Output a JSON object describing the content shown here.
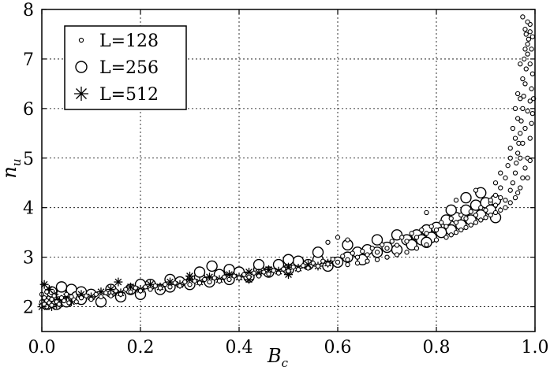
{
  "chart_data": {
    "type": "scatter",
    "xlabel": "B",
    "xlabel_sub": "c",
    "ylabel": "n",
    "ylabel_sub": "u",
    "xlim": [
      0.0,
      1.0
    ],
    "ylim": [
      1.5,
      8.0
    ],
    "xticks": [
      "0.0",
      "0.2",
      "0.4",
      "0.6",
      "0.8",
      "1.0"
    ],
    "yticks": [
      "2",
      "3",
      "4",
      "5",
      "6",
      "7",
      "8"
    ],
    "grid": true,
    "legend_position": "top-left",
    "series": [
      {
        "name": "L=128",
        "marker": "small-circle",
        "points": [
          [
            0.0,
            2.02
          ],
          [
            0.0,
            2.1
          ],
          [
            0.0,
            2.25
          ],
          [
            0.005,
            2.05
          ],
          [
            0.005,
            2.18
          ],
          [
            0.01,
            2.0
          ],
          [
            0.01,
            2.12
          ],
          [
            0.01,
            2.3
          ],
          [
            0.015,
            2.08
          ],
          [
            0.02,
            2.15
          ],
          [
            0.02,
            2.03
          ],
          [
            0.025,
            2.22
          ],
          [
            0.03,
            2.1
          ],
          [
            0.035,
            2.05
          ],
          [
            0.04,
            2.18
          ],
          [
            0.045,
            2.12
          ],
          [
            0.05,
            2.25
          ],
          [
            0.055,
            2.08
          ],
          [
            0.06,
            2.2
          ],
          [
            0.065,
            2.14
          ],
          [
            0.07,
            2.1
          ],
          [
            0.08,
            2.18
          ],
          [
            0.09,
            2.22
          ],
          [
            0.1,
            2.15
          ],
          [
            0.11,
            2.25
          ],
          [
            0.12,
            2.2
          ],
          [
            0.13,
            2.28
          ],
          [
            0.14,
            2.22
          ],
          [
            0.15,
            2.32
          ],
          [
            0.16,
            2.25
          ],
          [
            0.17,
            2.35
          ],
          [
            0.18,
            2.3
          ],
          [
            0.19,
            2.38
          ],
          [
            0.2,
            2.32
          ],
          [
            0.21,
            2.4
          ],
          [
            0.22,
            2.35
          ],
          [
            0.23,
            2.42
          ],
          [
            0.24,
            2.38
          ],
          [
            0.25,
            2.45
          ],
          [
            0.26,
            2.4
          ],
          [
            0.27,
            2.48
          ],
          [
            0.28,
            2.42
          ],
          [
            0.29,
            2.5
          ],
          [
            0.3,
            2.45
          ],
          [
            0.31,
            2.52
          ],
          [
            0.32,
            2.48
          ],
          [
            0.33,
            2.55
          ],
          [
            0.34,
            2.5
          ],
          [
            0.35,
            2.58
          ],
          [
            0.36,
            2.52
          ],
          [
            0.37,
            2.6
          ],
          [
            0.38,
            2.55
          ],
          [
            0.39,
            2.62
          ],
          [
            0.4,
            2.58
          ],
          [
            0.41,
            2.65
          ],
          [
            0.42,
            2.6
          ],
          [
            0.43,
            2.68
          ],
          [
            0.44,
            2.62
          ],
          [
            0.45,
            2.7
          ],
          [
            0.46,
            2.66
          ],
          [
            0.47,
            2.73
          ],
          [
            0.48,
            2.68
          ],
          [
            0.49,
            2.76
          ],
          [
            0.5,
            2.72
          ],
          [
            0.51,
            2.8
          ],
          [
            0.52,
            2.75
          ],
          [
            0.53,
            2.83
          ],
          [
            0.54,
            2.78
          ],
          [
            0.55,
            2.88
          ],
          [
            0.56,
            2.82
          ],
          [
            0.57,
            2.92
          ],
          [
            0.58,
            2.86
          ],
          [
            0.59,
            2.96
          ],
          [
            0.6,
            2.9
          ],
          [
            0.61,
            3.02
          ],
          [
            0.62,
            2.95
          ],
          [
            0.63,
            3.08
          ],
          [
            0.64,
            3.0
          ],
          [
            0.65,
            3.12
          ],
          [
            0.66,
            3.05
          ],
          [
            0.67,
            3.18
          ],
          [
            0.68,
            3.1
          ],
          [
            0.69,
            3.25
          ],
          [
            0.7,
            3.18
          ],
          [
            0.71,
            3.32
          ],
          [
            0.72,
            3.24
          ],
          [
            0.73,
            3.4
          ],
          [
            0.74,
            3.32
          ],
          [
            0.75,
            3.48
          ],
          [
            0.76,
            3.4
          ],
          [
            0.77,
            3.55
          ],
          [
            0.78,
            3.48
          ],
          [
            0.79,
            3.62
          ],
          [
            0.8,
            3.55
          ],
          [
            0.81,
            3.7
          ],
          [
            0.82,
            3.62
          ],
          [
            0.83,
            3.78
          ],
          [
            0.84,
            3.7
          ],
          [
            0.85,
            3.85
          ],
          [
            0.86,
            3.78
          ],
          [
            0.87,
            3.92
          ],
          [
            0.88,
            3.85
          ],
          [
            0.89,
            4.0
          ],
          [
            0.9,
            3.95
          ],
          [
            0.91,
            4.1
          ],
          [
            0.92,
            4.05
          ],
          [
            0.93,
            4.2
          ],
          [
            0.94,
            4.15
          ],
          [
            0.95,
            4.35
          ],
          [
            0.955,
            4.5
          ],
          [
            0.96,
            4.7
          ],
          [
            0.962,
            4.9
          ],
          [
            0.965,
            5.1
          ],
          [
            0.967,
            5.3
          ],
          [
            0.97,
            5.5
          ],
          [
            0.972,
            5.75
          ],
          [
            0.975,
            6.0
          ],
          [
            0.977,
            6.25
          ],
          [
            0.98,
            6.5
          ],
          [
            0.982,
            6.8
          ],
          [
            0.985,
            7.1
          ],
          [
            0.987,
            7.4
          ],
          [
            0.99,
            7.7
          ],
          [
            0.975,
            7.85
          ],
          [
            0.98,
            7.6
          ],
          [
            0.985,
            7.3
          ],
          [
            0.99,
            6.9
          ],
          [
            0.993,
            6.4
          ],
          [
            0.995,
            5.9
          ],
          [
            0.99,
            5.4
          ],
          [
            0.985,
            5.0
          ],
          [
            0.98,
            4.8
          ],
          [
            0.975,
            4.6
          ],
          [
            0.97,
            4.4
          ],
          [
            0.965,
            4.3
          ],
          [
            0.96,
            4.2
          ],
          [
            0.95,
            4.1
          ],
          [
            0.94,
            4.0
          ],
          [
            0.93,
            3.95
          ],
          [
            0.92,
            3.9
          ],
          [
            0.91,
            3.85
          ],
          [
            0.9,
            3.8
          ],
          [
            0.89,
            3.75
          ],
          [
            0.88,
            3.7
          ],
          [
            0.87,
            3.65
          ],
          [
            0.86,
            3.6
          ],
          [
            0.85,
            3.55
          ],
          [
            0.84,
            3.5
          ],
          [
            0.83,
            3.45
          ],
          [
            0.82,
            3.4
          ],
          [
            0.8,
            3.35
          ],
          [
            0.78,
            3.25
          ],
          [
            0.76,
            3.18
          ],
          [
            0.74,
            3.1
          ],
          [
            0.72,
            3.05
          ],
          [
            0.7,
            3.0
          ],
          [
            0.68,
            2.95
          ],
          [
            0.66,
            2.92
          ],
          [
            0.64,
            2.88
          ],
          [
            0.62,
            2.85
          ],
          [
            0.6,
            3.4
          ],
          [
            0.58,
            3.3
          ],
          [
            0.62,
            3.35
          ],
          [
            0.78,
            3.9
          ],
          [
            0.84,
            4.15
          ],
          [
            0.88,
            4.35
          ],
          [
            0.92,
            4.5
          ],
          [
            0.93,
            4.7
          ],
          [
            0.945,
            4.85
          ],
          [
            0.95,
            5.0
          ],
          [
            0.96,
            5.4
          ],
          [
            0.965,
            5.8
          ],
          [
            0.97,
            6.2
          ],
          [
            0.975,
            6.6
          ],
          [
            0.978,
            7.0
          ],
          [
            0.98,
            7.2
          ],
          [
            0.982,
            7.5
          ],
          [
            0.985,
            7.75
          ],
          [
            0.97,
            6.9
          ],
          [
            0.965,
            6.3
          ],
          [
            0.96,
            6.0
          ],
          [
            0.955,
            5.6
          ],
          [
            0.95,
            5.2
          ],
          [
            0.94,
            4.6
          ],
          [
            0.93,
            4.4
          ],
          [
            0.92,
            4.25
          ],
          [
            0.91,
            4.15
          ],
          [
            0.99,
            7.55
          ],
          [
            0.993,
            7.2
          ],
          [
            0.995,
            6.7
          ],
          [
            0.997,
            6.2
          ],
          [
            0.995,
            7.45
          ],
          [
            0.97,
            5.0
          ],
          [
            0.975,
            5.3
          ],
          [
            0.98,
            5.6
          ],
          [
            0.985,
            5.95
          ],
          [
            0.99,
            6.15
          ],
          [
            0.993,
            5.7
          ],
          [
            0.99,
            4.95
          ],
          [
            0.985,
            4.6
          ]
        ]
      },
      {
        "name": "L=256",
        "marker": "large-circle",
        "points": [
          [
            0.01,
            2.05
          ],
          [
            0.02,
            2.15
          ],
          [
            0.03,
            2.05
          ],
          [
            0.04,
            2.25
          ],
          [
            0.05,
            2.1
          ],
          [
            0.06,
            2.35
          ],
          [
            0.07,
            2.2
          ],
          [
            0.08,
            2.15
          ],
          [
            0.1,
            2.25
          ],
          [
            0.12,
            2.1
          ],
          [
            0.14,
            2.3
          ],
          [
            0.16,
            2.2
          ],
          [
            0.18,
            2.35
          ],
          [
            0.2,
            2.25
          ],
          [
            0.22,
            2.45
          ],
          [
            0.24,
            2.35
          ],
          [
            0.26,
            2.4
          ],
          [
            0.28,
            2.5
          ],
          [
            0.3,
            2.45
          ],
          [
            0.32,
            2.6
          ],
          [
            0.34,
            2.5
          ],
          [
            0.345,
            2.82
          ],
          [
            0.36,
            2.65
          ],
          [
            0.38,
            2.55
          ],
          [
            0.4,
            2.7
          ],
          [
            0.42,
            2.6
          ],
          [
            0.44,
            2.75
          ],
          [
            0.46,
            2.7
          ],
          [
            0.48,
            2.85
          ],
          [
            0.5,
            2.75
          ],
          [
            0.52,
            2.92
          ],
          [
            0.54,
            2.85
          ],
          [
            0.56,
            2.95
          ],
          [
            0.58,
            2.82
          ],
          [
            0.6,
            2.9
          ],
          [
            0.62,
            3.0
          ],
          [
            0.64,
            3.1
          ],
          [
            0.65,
            2.95
          ],
          [
            0.66,
            3.15
          ],
          [
            0.68,
            3.1
          ],
          [
            0.7,
            3.2
          ],
          [
            0.72,
            3.15
          ],
          [
            0.74,
            3.35
          ],
          [
            0.75,
            3.25
          ],
          [
            0.76,
            3.45
          ],
          [
            0.77,
            3.35
          ],
          [
            0.78,
            3.55
          ],
          [
            0.79,
            3.4
          ],
          [
            0.8,
            3.6
          ],
          [
            0.81,
            3.5
          ],
          [
            0.82,
            3.75
          ],
          [
            0.83,
            3.55
          ],
          [
            0.84,
            3.8
          ],
          [
            0.85,
            3.65
          ],
          [
            0.86,
            3.95
          ],
          [
            0.87,
            3.75
          ],
          [
            0.88,
            4.05
          ],
          [
            0.89,
            3.85
          ],
          [
            0.9,
            4.1
          ],
          [
            0.91,
            3.95
          ],
          [
            0.92,
            4.15
          ],
          [
            0.92,
            3.8
          ],
          [
            0.89,
            4.3
          ],
          [
            0.86,
            4.2
          ],
          [
            0.83,
            3.95
          ],
          [
            0.78,
            3.3
          ],
          [
            0.72,
            3.45
          ],
          [
            0.68,
            3.35
          ],
          [
            0.62,
            3.25
          ],
          [
            0.56,
            3.1
          ],
          [
            0.5,
            2.95
          ],
          [
            0.44,
            2.85
          ],
          [
            0.38,
            2.75
          ],
          [
            0.32,
            2.7
          ],
          [
            0.26,
            2.55
          ],
          [
            0.2,
            2.45
          ],
          [
            0.14,
            2.35
          ],
          [
            0.08,
            2.3
          ],
          [
            0.04,
            2.4
          ],
          [
            0.02,
            2.3
          ]
        ]
      },
      {
        "name": "L=512",
        "marker": "asterisk",
        "points": [
          [
            0.0,
            2.0
          ],
          [
            0.005,
            2.45
          ],
          [
            0.01,
            2.1
          ],
          [
            0.015,
            2.35
          ],
          [
            0.02,
            2.0
          ],
          [
            0.025,
            2.25
          ],
          [
            0.03,
            2.05
          ],
          [
            0.04,
            2.15
          ],
          [
            0.05,
            2.2
          ],
          [
            0.06,
            2.1
          ],
          [
            0.08,
            2.25
          ],
          [
            0.1,
            2.2
          ],
          [
            0.12,
            2.3
          ],
          [
            0.14,
            2.35
          ],
          [
            0.155,
            2.5
          ],
          [
            0.16,
            2.28
          ],
          [
            0.18,
            2.4
          ],
          [
            0.2,
            2.35
          ],
          [
            0.22,
            2.45
          ],
          [
            0.24,
            2.4
          ],
          [
            0.26,
            2.5
          ],
          [
            0.28,
            2.45
          ],
          [
            0.3,
            2.55
          ],
          [
            0.32,
            2.5
          ],
          [
            0.34,
            2.6
          ],
          [
            0.36,
            2.55
          ],
          [
            0.38,
            2.65
          ],
          [
            0.4,
            2.6
          ],
          [
            0.42,
            2.7
          ],
          [
            0.44,
            2.68
          ],
          [
            0.46,
            2.75
          ],
          [
            0.48,
            2.72
          ],
          [
            0.5,
            2.8
          ],
          [
            0.52,
            2.78
          ],
          [
            0.54,
            2.85
          ],
          [
            0.56,
            2.82
          ],
          [
            0.58,
            2.88
          ],
          [
            0.3,
            2.62
          ],
          [
            0.42,
            2.55
          ],
          [
            0.5,
            2.65
          ]
        ]
      }
    ]
  }
}
